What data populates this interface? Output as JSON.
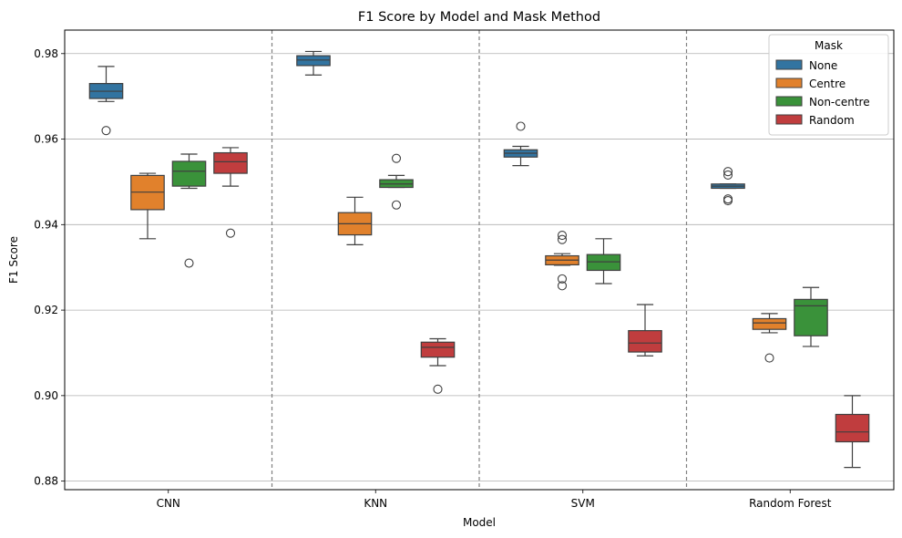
{
  "chart_data": {
    "type": "box",
    "title": "F1 Score by Model and Mask Method",
    "xlabel": "Model",
    "ylabel": "F1 Score",
    "ylim": [
      0.878,
      0.9855
    ],
    "yticks": [
      "0.88",
      "0.90",
      "0.92",
      "0.94",
      "0.96",
      "0.98"
    ],
    "grid": "horizontal",
    "legend": {
      "title": "Mask",
      "placement": "top-right"
    },
    "categories": [
      "CNN",
      "KNN",
      "SVM",
      "Random Forest"
    ],
    "series": [
      {
        "name": "None",
        "color": "#3274a1",
        "boxes": [
          {
            "whisker_low": 0.9688,
            "q1": 0.9695,
            "median": 0.9712,
            "q3": 0.973,
            "whisker_high": 0.977,
            "outliers": [
              0.962
            ]
          },
          {
            "whisker_low": 0.975,
            "q1": 0.9772,
            "median": 0.9785,
            "q3": 0.9795,
            "whisker_high": 0.9805,
            "outliers": []
          },
          {
            "whisker_low": 0.9538,
            "q1": 0.9558,
            "median": 0.9567,
            "q3": 0.9575,
            "whisker_high": 0.9583,
            "outliers": [
              0.963
            ]
          },
          {
            "whisker_low": 0.9485,
            "q1": 0.9485,
            "median": 0.949,
            "q3": 0.9495,
            "whisker_high": 0.9495,
            "outliers": [
              0.9524,
              0.9516,
              0.946,
              0.9456
            ]
          }
        ]
      },
      {
        "name": "Centre",
        "color": "#e1812c",
        "boxes": [
          {
            "whisker_low": 0.9367,
            "q1": 0.9435,
            "median": 0.9476,
            "q3": 0.9515,
            "whisker_high": 0.952,
            "outliers": []
          },
          {
            "whisker_low": 0.9353,
            "q1": 0.9376,
            "median": 0.9402,
            "q3": 0.9428,
            "whisker_high": 0.9464,
            "outliers": []
          },
          {
            "whisker_low": 0.9305,
            "q1": 0.9306,
            "median": 0.9317,
            "q3": 0.9327,
            "whisker_high": 0.9332,
            "outliers": [
              0.9375,
              0.9365,
              0.9273,
              0.9257
            ]
          },
          {
            "whisker_low": 0.9147,
            "q1": 0.9155,
            "median": 0.917,
            "q3": 0.918,
            "whisker_high": 0.9192,
            "outliers": [
              0.9088
            ]
          }
        ]
      },
      {
        "name": "Non-centre",
        "color": "#3a923a",
        "boxes": [
          {
            "whisker_low": 0.9485,
            "q1": 0.949,
            "median": 0.9525,
            "q3": 0.9548,
            "whisker_high": 0.9565,
            "outliers": [
              0.931
            ]
          },
          {
            "whisker_low": 0.9487,
            "q1": 0.9487,
            "median": 0.9495,
            "q3": 0.9505,
            "whisker_high": 0.9515,
            "outliers": [
              0.9555,
              0.9446
            ]
          },
          {
            "whisker_low": 0.9262,
            "q1": 0.9293,
            "median": 0.9313,
            "q3": 0.933,
            "whisker_high": 0.9367,
            "outliers": []
          },
          {
            "whisker_low": 0.9115,
            "q1": 0.914,
            "median": 0.921,
            "q3": 0.9225,
            "whisker_high": 0.9253,
            "outliers": []
          }
        ]
      },
      {
        "name": "Random",
        "color": "#c03d3e",
        "boxes": [
          {
            "whisker_low": 0.949,
            "q1": 0.952,
            "median": 0.9547,
            "q3": 0.9568,
            "whisker_high": 0.958,
            "outliers": [
              0.938
            ]
          },
          {
            "whisker_low": 0.907,
            "q1": 0.909,
            "median": 0.9113,
            "q3": 0.9125,
            "whisker_high": 0.9133,
            "outliers": [
              0.9015
            ]
          },
          {
            "whisker_low": 0.9093,
            "q1": 0.9102,
            "median": 0.9123,
            "q3": 0.9152,
            "whisker_high": 0.9213,
            "outliers": []
          },
          {
            "whisker_low": 0.8832,
            "q1": 0.8892,
            "median": 0.8915,
            "q3": 0.8956,
            "whisker_high": 0.9,
            "outliers": []
          }
        ]
      }
    ]
  }
}
